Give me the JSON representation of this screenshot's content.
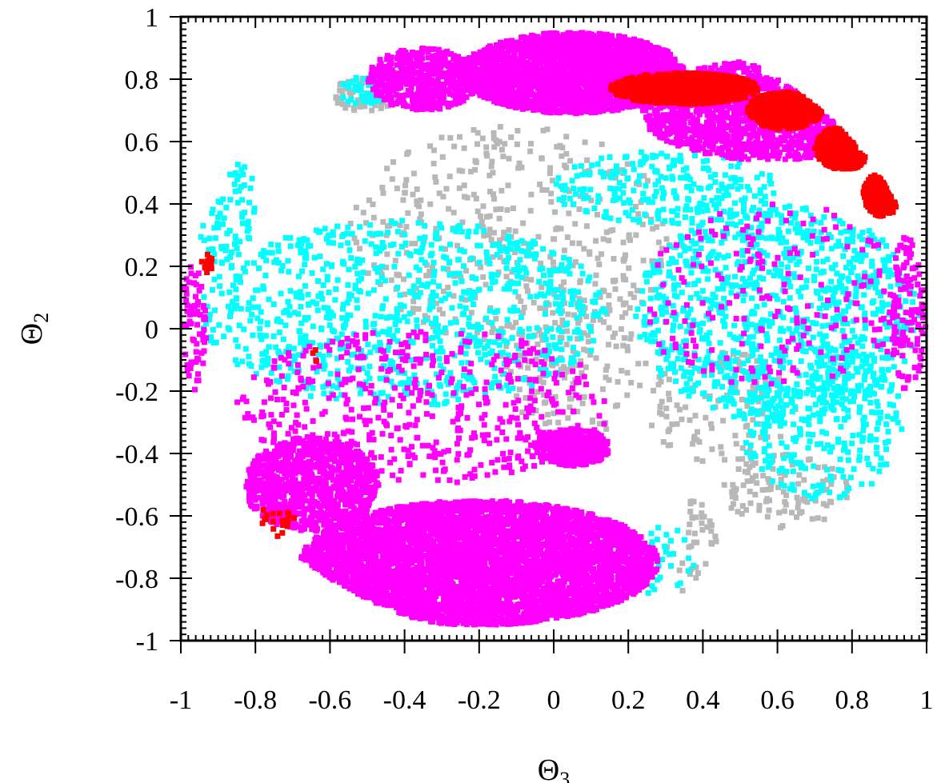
{
  "chart_data": {
    "type": "scatter",
    "title": "",
    "xlabel": {
      "symbol": "Θ",
      "subscript": "3"
    },
    "ylabel": {
      "symbol": "Θ",
      "subscript": "2"
    },
    "xlim": [
      -1,
      1
    ],
    "ylim": [
      -1,
      1
    ],
    "x_ticks": [
      -1,
      -0.8,
      -0.6,
      -0.4,
      -0.2,
      0,
      0.2,
      0.4,
      0.6,
      0.8,
      1
    ],
    "y_ticks": [
      -1,
      -0.8,
      -0.6,
      -0.4,
      -0.2,
      0,
      0.2,
      0.4,
      0.6,
      0.8,
      1
    ],
    "x_tick_labels": [
      "-1",
      "-0.8",
      "-0.6",
      "-0.4",
      "-0.2",
      "0",
      "0.2",
      "0.4",
      "0.6",
      "0.8",
      "1"
    ],
    "y_tick_labels": [
      "-1",
      "-0.8",
      "-0.6",
      "-0.4",
      "-0.2",
      "0",
      "0.2",
      "0.4",
      "0.6",
      "0.8",
      "1"
    ],
    "grid": false,
    "legend": "none",
    "series": [
      {
        "color": "#b8b8b8",
        "regions": [
          {
            "cx": -0.5,
            "cy": 0.75,
            "rx": 0.09,
            "ry": 0.06,
            "count": 60
          },
          {
            "cx": -0.1,
            "cy": 0.3,
            "rx": 0.45,
            "ry": 0.35,
            "count": 420
          },
          {
            "cx": 0.05,
            "cy": -0.1,
            "rx": 0.2,
            "ry": 0.25,
            "count": 160
          },
          {
            "cx": 0.45,
            "cy": -0.25,
            "rx": 0.2,
            "ry": 0.18,
            "count": 120
          },
          {
            "cx": 0.62,
            "cy": -0.52,
            "rx": 0.17,
            "ry": 0.12,
            "count": 110
          },
          {
            "cx": 0.37,
            "cy": -0.7,
            "rx": 0.07,
            "ry": 0.15,
            "count": 40
          }
        ]
      },
      {
        "color": "#00ffff",
        "regions": [
          {
            "cx": -0.4,
            "cy": 0.05,
            "rx": 0.55,
            "ry": 0.3,
            "count": 900
          },
          {
            "cx": -0.88,
            "cy": 0.4,
            "rx": 0.08,
            "ry": 0.2,
            "count": 120
          },
          {
            "cx": 0.6,
            "cy": 0.05,
            "rx": 0.38,
            "ry": 0.35,
            "count": 1000
          },
          {
            "cx": 0.3,
            "cy": 0.45,
            "rx": 0.3,
            "ry": 0.12,
            "count": 250
          },
          {
            "cx": 0.72,
            "cy": -0.3,
            "rx": 0.22,
            "ry": 0.25,
            "count": 300
          },
          {
            "cx": -0.52,
            "cy": 0.76,
            "rx": 0.07,
            "ry": 0.05,
            "count": 40
          },
          {
            "cx": 0.3,
            "cy": -0.75,
            "rx": 0.08,
            "ry": 0.12,
            "count": 30
          }
        ]
      },
      {
        "color": "#ff00ff",
        "regions": [
          {
            "cx": 0.05,
            "cy": 0.82,
            "rx": 0.3,
            "ry": 0.13,
            "dense": true,
            "count": 2600
          },
          {
            "cx": 0.58,
            "cy": 0.7,
            "rx": 0.35,
            "ry": 0.16,
            "dense": true,
            "count": 1800
          },
          {
            "cx": -0.35,
            "cy": 0.8,
            "rx": 0.15,
            "ry": 0.1,
            "dense": true,
            "count": 600
          },
          {
            "cx": -0.2,
            "cy": -0.75,
            "rx": 0.48,
            "ry": 0.2,
            "dense": true,
            "count": 5200
          },
          {
            "cx": -0.65,
            "cy": -0.5,
            "rx": 0.18,
            "ry": 0.15,
            "dense": true,
            "count": 900
          },
          {
            "cx": 0.05,
            "cy": -0.38,
            "rx": 0.1,
            "ry": 0.06,
            "dense": true,
            "count": 350
          },
          {
            "cx": -0.35,
            "cy": -0.25,
            "rx": 0.5,
            "ry": 0.25,
            "count": 500
          },
          {
            "cx": 0.6,
            "cy": 0.1,
            "rx": 0.38,
            "ry": 0.3,
            "count": 200
          },
          {
            "cx": 0.95,
            "cy": 0.05,
            "rx": 0.05,
            "ry": 0.25,
            "count": 120
          },
          {
            "cx": -0.97,
            "cy": 0.0,
            "rx": 0.04,
            "ry": 0.2,
            "count": 80
          }
        ]
      },
      {
        "color": "#ff0000",
        "regions": [
          {
            "cx": 0.35,
            "cy": 0.77,
            "rx": 0.2,
            "ry": 0.05,
            "dense": true,
            "count": 900
          },
          {
            "cx": 0.62,
            "cy": 0.7,
            "rx": 0.1,
            "ry": 0.06,
            "dense": true,
            "count": 600
          },
          {
            "cx": 0.78,
            "cy": 0.58,
            "rx": 0.08,
            "ry": 0.07,
            "dense": true,
            "count": 500
          },
          {
            "cx": 0.88,
            "cy": 0.43,
            "rx": 0.05,
            "ry": 0.07,
            "dense": true,
            "count": 300
          },
          {
            "cx": -0.93,
            "cy": 0.21,
            "rx": 0.015,
            "ry": 0.03,
            "count": 15
          },
          {
            "cx": -0.77,
            "cy": -0.62,
            "rx": 0.08,
            "ry": 0.05,
            "count": 40
          },
          {
            "cx": -0.64,
            "cy": -0.12,
            "rx": 0.01,
            "ry": 0.06,
            "count": 3
          }
        ]
      }
    ]
  }
}
